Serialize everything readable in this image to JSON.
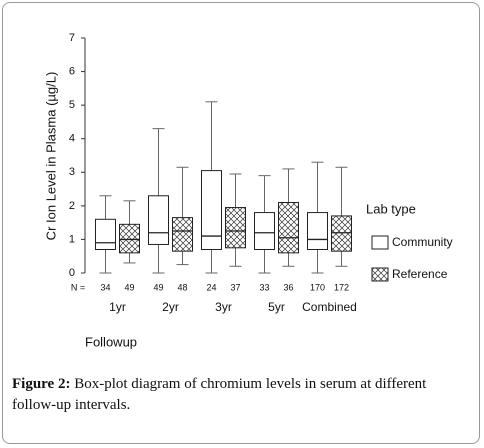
{
  "chart_data": {
    "type": "box",
    "y_label": "Cr Ion Level in Plasma  (µg/L)",
    "x_label": "Followup",
    "legend_title": "Lab type",
    "n_label": "N =",
    "categories": [
      "1yr",
      "2yr",
      "3yr",
      "5yr",
      "Combined"
    ],
    "ylim": [
      0,
      7
    ],
    "yticks": [
      0,
      1,
      2,
      3,
      4,
      5,
      6,
      7
    ],
    "series": [
      {
        "name": "Community",
        "fill": "plain",
        "n": [
          34,
          49,
          24,
          33,
          170
        ],
        "values": [
          {
            "min": 0,
            "q1": 0.7,
            "median": 0.9,
            "q3": 1.6,
            "max": 2.3
          },
          {
            "min": 0,
            "q1": 0.85,
            "median": 1.2,
            "q3": 2.3,
            "max": 4.3
          },
          {
            "min": 0,
            "q1": 0.7,
            "median": 1.1,
            "q3": 3.05,
            "max": 5.1
          },
          {
            "min": 0,
            "q1": 0.7,
            "median": 1.2,
            "q3": 1.8,
            "max": 2.9
          },
          {
            "min": 0,
            "q1": 0.7,
            "median": 1.0,
            "q3": 1.8,
            "max": 3.3
          }
        ]
      },
      {
        "name": "Reference",
        "fill": "crosshatch",
        "n": [
          49,
          48,
          37,
          36,
          172
        ],
        "values": [
          {
            "min": 0.3,
            "q1": 0.6,
            "median": 1.0,
            "q3": 1.45,
            "max": 2.15
          },
          {
            "min": 0.25,
            "q1": 0.65,
            "median": 1.25,
            "q3": 1.65,
            "max": 3.15
          },
          {
            "min": 0.2,
            "q1": 0.75,
            "median": 1.25,
            "q3": 1.95,
            "max": 2.95
          },
          {
            "min": 0.2,
            "q1": 0.6,
            "median": 1.05,
            "q3": 2.1,
            "max": 3.1
          },
          {
            "min": 0.2,
            "q1": 0.65,
            "median": 1.2,
            "q3": 1.7,
            "max": 3.15
          }
        ]
      }
    ]
  },
  "caption": {
    "label": "Figure 2:",
    "text": "Box-plot diagram of chromium levels in serum at different follow-up intervals."
  }
}
